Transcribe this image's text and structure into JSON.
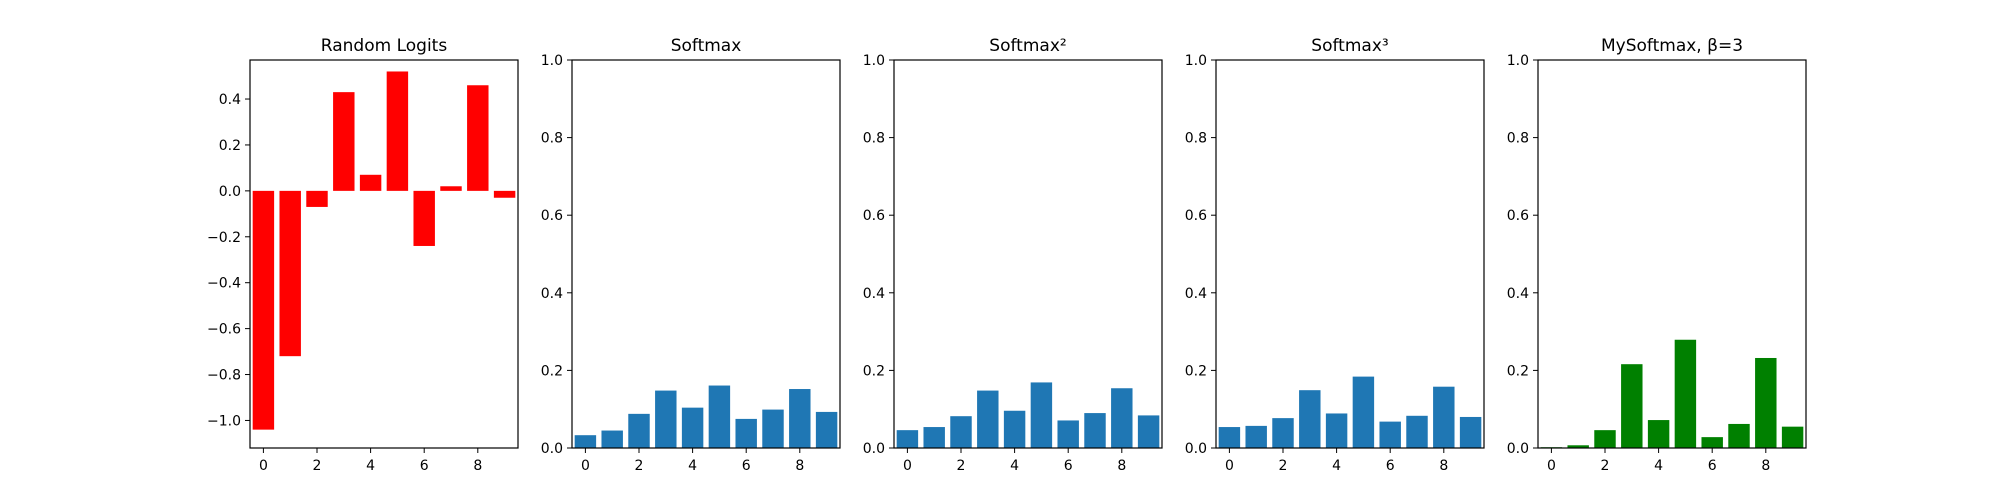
{
  "chart_data": [
    {
      "type": "bar",
      "title": "Random Logits",
      "color": "#ff0000",
      "x": [
        0,
        1,
        2,
        3,
        4,
        5,
        6,
        7,
        8,
        9
      ],
      "values": [
        -1.04,
        -0.72,
        -0.07,
        0.43,
        0.07,
        0.52,
        -0.24,
        0.02,
        0.46,
        -0.03
      ],
      "ylim": [
        -1.12,
        0.57
      ],
      "yticks": [
        -1.0,
        -0.8,
        -0.6,
        -0.4,
        -0.2,
        0.0,
        0.2,
        0.4
      ],
      "ytick_labels": [
        "−1.0",
        "−0.8",
        "−0.6",
        "−0.4",
        "−0.2",
        "0.0",
        "0.2",
        "0.4"
      ],
      "xticks": [
        0,
        2,
        4,
        6,
        8
      ],
      "xtick_labels": [
        "0",
        "2",
        "4",
        "6",
        "8"
      ],
      "xlim": [
        -0.5,
        9.5
      ]
    },
    {
      "type": "bar",
      "title": "Softmax",
      "color": "#1f77b4",
      "x": [
        0,
        1,
        2,
        3,
        4,
        5,
        6,
        7,
        8,
        9
      ],
      "values": [
        0.033,
        0.045,
        0.088,
        0.148,
        0.104,
        0.161,
        0.075,
        0.099,
        0.152,
        0.093
      ],
      "ylim": [
        0,
        1
      ],
      "yticks": [
        0.0,
        0.2,
        0.4,
        0.6,
        0.8,
        1.0
      ],
      "ytick_labels": [
        "0.0",
        "0.2",
        "0.4",
        "0.6",
        "0.8",
        "1.0"
      ],
      "xticks": [
        0,
        2,
        4,
        6,
        8
      ],
      "xtick_labels": [
        "0",
        "2",
        "4",
        "6",
        "8"
      ],
      "xlim": [
        -0.5,
        9.5
      ]
    },
    {
      "type": "bar",
      "title": "Softmax²",
      "color": "#1f77b4",
      "x": [
        0,
        1,
        2,
        3,
        4,
        5,
        6,
        7,
        8,
        9
      ],
      "values": [
        0.046,
        0.054,
        0.082,
        0.148,
        0.096,
        0.169,
        0.071,
        0.09,
        0.154,
        0.084
      ],
      "ylim": [
        0,
        1
      ],
      "yticks": [
        0.0,
        0.2,
        0.4,
        0.6,
        0.8,
        1.0
      ],
      "ytick_labels": [
        "0.0",
        "0.2",
        "0.4",
        "0.6",
        "0.8",
        "1.0"
      ],
      "xticks": [
        0,
        2,
        4,
        6,
        8
      ],
      "xtick_labels": [
        "0",
        "2",
        "4",
        "6",
        "8"
      ],
      "xlim": [
        -0.5,
        9.5
      ]
    },
    {
      "type": "bar",
      "title": "Softmax³",
      "color": "#1f77b4",
      "x": [
        0,
        1,
        2,
        3,
        4,
        5,
        6,
        7,
        8,
        9
      ],
      "values": [
        0.054,
        0.057,
        0.077,
        0.149,
        0.089,
        0.184,
        0.068,
        0.083,
        0.158,
        0.08
      ],
      "ylim": [
        0,
        1
      ],
      "yticks": [
        0.0,
        0.2,
        0.4,
        0.6,
        0.8,
        1.0
      ],
      "ytick_labels": [
        "0.0",
        "0.2",
        "0.4",
        "0.6",
        "0.8",
        "1.0"
      ],
      "xticks": [
        0,
        2,
        4,
        6,
        8
      ],
      "xtick_labels": [
        "0",
        "2",
        "4",
        "6",
        "8"
      ],
      "xlim": [
        -0.5,
        9.5
      ]
    },
    {
      "type": "bar",
      "title": "MySoftmax, β=3",
      "color": "#008000",
      "x": [
        0,
        1,
        2,
        3,
        4,
        5,
        6,
        7,
        8,
        9
      ],
      "values": [
        0.002,
        0.007,
        0.046,
        0.216,
        0.072,
        0.279,
        0.028,
        0.062,
        0.232,
        0.055
      ],
      "ylim": [
        0,
        1
      ],
      "yticks": [
        0.0,
        0.2,
        0.4,
        0.6,
        0.8,
        1.0
      ],
      "ytick_labels": [
        "0.0",
        "0.2",
        "0.4",
        "0.6",
        "0.8",
        "1.0"
      ],
      "xticks": [
        0,
        2,
        4,
        6,
        8
      ],
      "xtick_labels": [
        "0",
        "2",
        "4",
        "6",
        "8"
      ],
      "xlim": [
        -0.5,
        9.5
      ]
    }
  ]
}
